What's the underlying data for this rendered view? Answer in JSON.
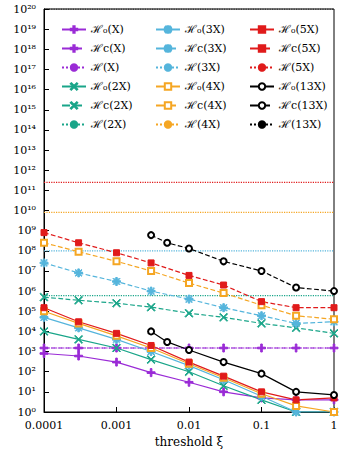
{
  "chart_data": {
    "type": "line",
    "log": true,
    "grid": false,
    "legend": "top",
    "x_label": "threshold ξ",
    "xlim": [
      0.0001,
      1
    ],
    "xticks": [
      0.0001,
      0.001,
      0.01,
      0.1,
      1
    ],
    "ylim": [
      1,
      1e+20
    ],
    "yticks": [
      {
        "value": 1,
        "label": "10⁰"
      },
      {
        "value": 10,
        "label": "10¹"
      },
      {
        "value": 100,
        "label": "10²"
      },
      {
        "value": 1000,
        "label": "10³"
      },
      {
        "value": 10000,
        "label": "10⁴"
      },
      {
        "value": 100000,
        "label": "10⁵"
      },
      {
        "value": 1000000,
        "label": "10⁶"
      },
      {
        "value": 10000000,
        "label": "10⁷"
      },
      {
        "value": 100000000,
        "label": "10⁸"
      },
      {
        "value": 1000000000,
        "label": "10⁹"
      },
      {
        "value": 10000000000.0,
        "label": "10¹⁰"
      },
      {
        "value": 100000000000.0,
        "label": "10¹¹"
      },
      {
        "value": 1000000000000.0,
        "label": "10¹²"
      },
      {
        "value": 10000000000000.0,
        "label": "10¹³"
      },
      {
        "value": 100000000000000.0,
        "label": "10¹⁴"
      },
      {
        "value": 1000000000000000.0,
        "label": "10¹⁵"
      },
      {
        "value": 1e+16,
        "label": "10¹⁶"
      },
      {
        "value": 1e+17,
        "label": "10¹⁷"
      },
      {
        "value": 1e+18,
        "label": "10¹⁸"
      },
      {
        "value": 1e+19,
        "label": "10¹⁹"
      },
      {
        "value": 1e+20,
        "label": "10²⁰"
      }
    ],
    "series": [
      {
        "name": "ℋ₀(X)",
        "color": "#9a2bd6",
        "marker": "plus",
        "line_style": "solid",
        "x": [
          0.0001,
          0.0003,
          0.001,
          0.003,
          0.01,
          0.03,
          0.1,
          0.3,
          1
        ],
        "values": [
          800,
          600,
          300,
          90,
          30,
          10,
          5,
          4,
          4
        ]
      },
      {
        "name": "ℋc(X)",
        "color": "#9a2bd6",
        "marker": "plus",
        "line_style": "dashed",
        "x": [
          0.0001,
          0.0003,
          0.001,
          0.003,
          0.01,
          0.03,
          0.1,
          0.3,
          1
        ],
        "values": [
          1500,
          1500,
          1500,
          1500,
          1500,
          1500,
          1500,
          1500,
          1500
        ]
      },
      {
        "name": "ℋ(X)",
        "color": "#9a2bd6",
        "marker": "none",
        "line_style": "dotted",
        "x": [
          0.0001,
          1
        ],
        "values": [
          1500,
          1500
        ]
      },
      {
        "name": "ℋ₀(2X)",
        "color": "#19a589",
        "marker": "x",
        "line_style": "solid",
        "x": [
          0.0001,
          0.0003,
          0.001,
          0.003,
          0.01,
          0.03,
          0.1,
          0.3,
          1
        ],
        "values": [
          10000,
          4000,
          1500,
          400,
          100,
          20,
          4,
          1,
          1
        ]
      },
      {
        "name": "ℋc(2X)",
        "color": "#19a589",
        "marker": "x",
        "line_style": "dashed",
        "x": [
          0.0001,
          0.0003,
          0.001,
          0.003,
          0.01,
          0.03,
          0.1,
          0.3,
          1
        ],
        "values": [
          500000,
          350000,
          250000,
          160000,
          80000,
          50000,
          25000,
          15000,
          8000
        ]
      },
      {
        "name": "ℋ(2X)",
        "color": "#19a589",
        "marker": "none",
        "line_style": "dotted",
        "x": [
          0.0001,
          1
        ],
        "values": [
          600000,
          600000
        ]
      },
      {
        "name": "ℋ₀(3X)",
        "color": "#55b5dc",
        "marker": "star",
        "line_style": "solid",
        "x": [
          0.0001,
          0.0003,
          0.001,
          0.003,
          0.01,
          0.03,
          0.1,
          0.3,
          1
        ],
        "values": [
          50000,
          15000,
          4000,
          1000,
          200,
          40,
          6,
          1,
          1
        ]
      },
      {
        "name": "ℋc(3X)",
        "color": "#55b5dc",
        "marker": "star",
        "line_style": "dashed",
        "x": [
          0.0001,
          0.0003,
          0.001,
          0.003,
          0.01,
          0.03,
          0.1,
          0.3,
          1
        ],
        "values": [
          25000000,
          8000000,
          3000000,
          1000000,
          400000,
          150000,
          60000,
          25000,
          30000
        ]
      },
      {
        "name": "ℋ(3X)",
        "color": "#55b5dc",
        "marker": "none",
        "line_style": "dotted",
        "x": [
          0.0001,
          1
        ],
        "values": [
          100000000,
          100000000
        ]
      },
      {
        "name": "ℋ₀(4X)",
        "color": "#f5a623",
        "marker": "square_open",
        "line_style": "solid",
        "x": [
          0.0001,
          0.0003,
          0.001,
          0.003,
          0.01,
          0.03,
          0.1,
          0.3,
          1
        ],
        "values": [
          100000,
          25000,
          6000,
          1500,
          250,
          50,
          8,
          2,
          1
        ]
      },
      {
        "name": "ℋc(4X)",
        "color": "#f5a623",
        "marker": "square_open",
        "line_style": "dashed",
        "x": [
          0.0001,
          0.0003,
          0.001,
          0.003,
          0.01,
          0.03,
          0.1,
          0.3,
          1
        ],
        "values": [
          250000000,
          90000000,
          30000000,
          10000000,
          2500000,
          800000,
          200000,
          60000,
          40000
        ]
      },
      {
        "name": "ℋ(4X)",
        "color": "#f5a623",
        "marker": "none",
        "line_style": "dotted",
        "x": [
          0.0001,
          1
        ],
        "values": [
          8000000000,
          8000000000
        ]
      },
      {
        "name": "ℋ₀(5X)",
        "color": "#e01b1b",
        "marker": "square",
        "line_style": "solid",
        "x": [
          0.0001,
          0.0003,
          0.001,
          0.003,
          0.01,
          0.03,
          0.1,
          0.3,
          1
        ],
        "values": [
          150000,
          30000,
          8000,
          2000,
          300,
          60,
          10,
          4,
          5
        ]
      },
      {
        "name": "ℋc(5X)",
        "color": "#e01b1b",
        "marker": "square",
        "line_style": "dashed",
        "x": [
          0.0001,
          0.0003,
          0.001,
          0.003,
          0.01,
          0.03,
          0.1,
          0.3,
          1
        ],
        "values": [
          800000000,
          250000000,
          80000000,
          25000000,
          6000000,
          2000000,
          300000,
          150000,
          150000
        ]
      },
      {
        "name": "ℋ(5X)",
        "color": "#e01b1b",
        "marker": "none",
        "line_style": "dotted",
        "x": [
          0.0001,
          1
        ],
        "values": [
          250000000000,
          250000000000
        ]
      },
      {
        "name": "ℋ₀(13X)",
        "color": "#000000",
        "marker": "circle_open",
        "line_style": "solid",
        "x": [
          0.003,
          0.005,
          0.01,
          0.03,
          0.1,
          0.3,
          1
        ],
        "values": [
          10000,
          3000,
          1200,
          300,
          80,
          10,
          7
        ]
      },
      {
        "name": "ℋc(13X)",
        "color": "#000000",
        "marker": "circle_open",
        "line_style": "dashed",
        "x": [
          0.003,
          0.005,
          0.01,
          0.03,
          0.1,
          0.3,
          1
        ],
        "values": [
          600000000,
          250000000,
          130000000,
          30000000,
          10000000,
          1500000,
          1000000
        ]
      },
      {
        "name": "ℋ(13X)",
        "color": "#000000",
        "marker": "none",
        "line_style": "dotted",
        "x": [
          0.0001,
          1
        ],
        "values": [
          1e+20,
          1e+20
        ]
      }
    ]
  }
}
